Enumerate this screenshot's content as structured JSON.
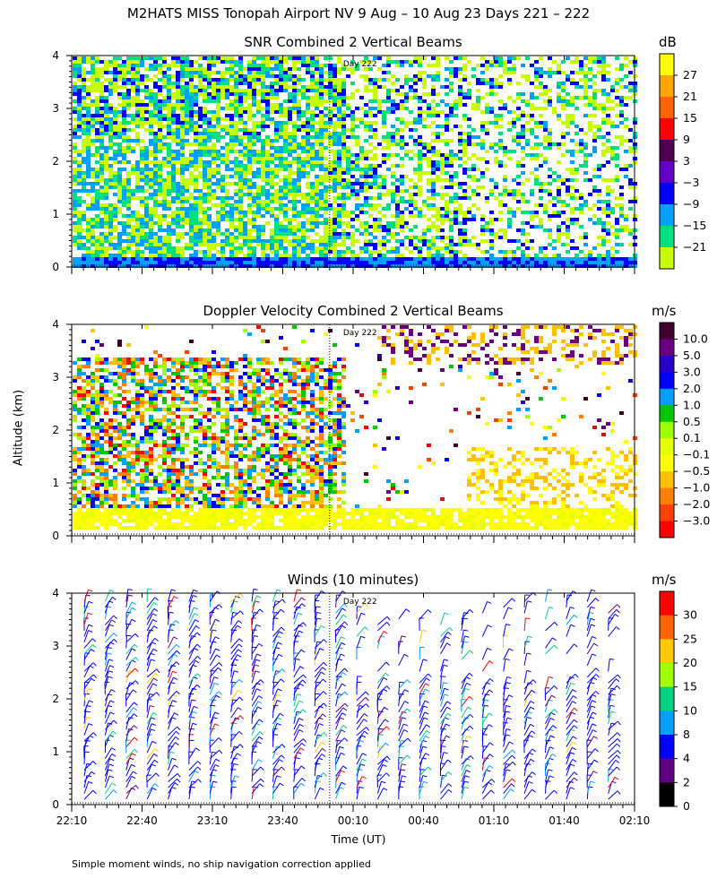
{
  "title": "M2HATS MISS Tonopah Airport NV   9 Aug – 10 Aug 23 Days 221 – 222",
  "ylabel": "Altitude (km)",
  "xlabel": "Time (UT)",
  "footnote": "Simple moment winds, no ship navigation correction applied",
  "day_marker": "Day 222",
  "y_ticks": [
    "0",
    "1",
    "2",
    "3",
    "4"
  ],
  "x_ticks": [
    "22:10",
    "22:40",
    "23:10",
    "23:40",
    "00:10",
    "00:40",
    "01:10",
    "01:40",
    "02:10"
  ],
  "chart_data": [
    {
      "type": "heatmap",
      "title": "SNR Combined 2 Vertical Beams",
      "colorbar_unit": "dB",
      "colorbar_ticks": [
        "27",
        "21",
        "15",
        "9",
        "3",
        "−3",
        "−9",
        "−15",
        "−21"
      ],
      "colorbar_colors": [
        "#ffff00",
        "#ffa500",
        "#ff6400",
        "#ff0000",
        "#500050",
        "#6400c8",
        "#0000ff",
        "#00a0ff",
        "#00e080",
        "#c8ff00"
      ],
      "xlim": [
        "22:10",
        "02:10"
      ],
      "ylim": [
        0,
        4
      ],
      "day_boundary": "00:00"
    },
    {
      "type": "heatmap",
      "title": "Doppler Velocity Combined 2 Vertical Beams",
      "colorbar_unit": "m/s",
      "colorbar_ticks": [
        "10.0",
        "5.0",
        "3.0",
        "2.0",
        "1.0",
        "0.5",
        "0.1",
        "−0.1",
        "−0.5",
        "−1.0",
        "−2.0",
        "−3.0"
      ],
      "colorbar_colors": [
        "#400030",
        "#6a0080",
        "#2800c8",
        "#0000ff",
        "#00a0ff",
        "#00c800",
        "#a0ff00",
        "#e8ff00",
        "#ffff00",
        "#ffc000",
        "#ff8000",
        "#ff4000",
        "#ff0000"
      ],
      "xlim": [
        "22:10",
        "02:10"
      ],
      "ylim": [
        0,
        4
      ],
      "day_boundary": "00:00"
    },
    {
      "type": "scatter",
      "title": "Winds (10 minutes)",
      "colorbar_unit": "m/s",
      "colorbar_ticks": [
        "30",
        "25",
        "20",
        "15",
        "10",
        "8",
        "4",
        "2",
        "0"
      ],
      "colorbar_colors": [
        "#ff0000",
        "#ff6400",
        "#ffc800",
        "#a0ff00",
        "#00d080",
        "#00a0ff",
        "#0000ff",
        "#600080",
        "#000000"
      ],
      "xlim": [
        "22:10",
        "02:10"
      ],
      "ylim": [
        0,
        4
      ],
      "day_boundary": "00:00"
    }
  ]
}
